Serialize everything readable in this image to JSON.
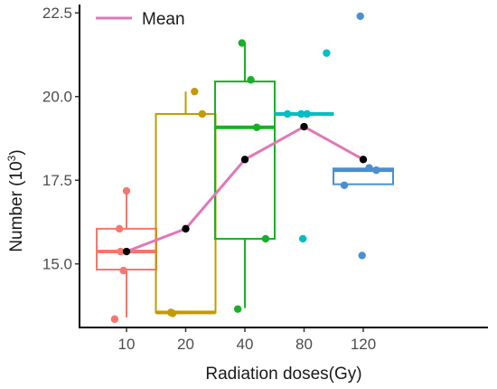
{
  "chart_data": {
    "type": "box",
    "xlabel": "Radiation doses(Gy)",
    "ylabel": "Number (10",
    "ylabel_superscript": "3",
    "ylabel_suffix": ")",
    "ylim": [
      13.1,
      22.75
    ],
    "yticks": [
      15.0,
      17.5,
      20.0,
      22.5
    ],
    "ytick_labels": [
      "15.0",
      "17.5",
      "20.0",
      "22.5"
    ],
    "categories": [
      "10",
      "20",
      "40",
      "80",
      "120"
    ],
    "colors": [
      "#F8766D",
      "#C49A00",
      "#1AAF26",
      "#00BFC4",
      "#4A90D0"
    ],
    "boxes": [
      {
        "q1": 14.83,
        "median": 15.37,
        "q3": 16.05,
        "whisker_low": 13.4,
        "whisker_high": 17.18
      },
      {
        "q1": 13.55,
        "median": 13.55,
        "q3": 19.48,
        "whisker_low": 13.55,
        "whisker_high": 20.15
      },
      {
        "q1": 15.75,
        "median": 19.08,
        "q3": 20.45,
        "whisker_low": 13.68,
        "whisker_high": 21.6
      },
      {
        "q1": 19.48,
        "median": 19.48,
        "q3": 19.48,
        "whisker_low": 19.48,
        "whisker_high": 19.48
      },
      {
        "q1": 17.38,
        "median": 17.8,
        "q3": 17.85,
        "whisker_low": 17.38,
        "whisker_high": 17.85
      }
    ],
    "points": [
      [
        {
          "dx": -0.2,
          "y": 13.35
        },
        {
          "dx": 0.0,
          "y": 17.18
        },
        {
          "dx": -0.12,
          "y": 16.05
        },
        {
          "dx": -0.1,
          "y": 15.37
        },
        {
          "dx": -0.05,
          "y": 14.8
        }
      ],
      [
        {
          "dx": -0.25,
          "y": 13.55
        },
        {
          "dx": -0.22,
          "y": 13.52
        },
        {
          "dx": 0.15,
          "y": 20.15
        },
        {
          "dx": 0.28,
          "y": 19.48
        }
      ],
      [
        {
          "dx": -0.12,
          "y": 13.65
        },
        {
          "dx": -0.05,
          "y": 21.6
        },
        {
          "dx": 0.1,
          "y": 20.5
        },
        {
          "dx": 0.2,
          "y": 19.08
        },
        {
          "dx": 0.35,
          "y": 15.75
        }
      ],
      [
        {
          "dx": -0.28,
          "y": 19.48
        },
        {
          "dx": -0.05,
          "y": 19.48
        },
        {
          "dx": 0.05,
          "y": 19.48
        },
        {
          "dx": 0.38,
          "y": 21.3
        },
        {
          "dx": -0.02,
          "y": 15.75
        }
      ],
      [
        {
          "dx": -0.05,
          "y": 22.4
        },
        {
          "dx": -0.32,
          "y": 17.35
        },
        {
          "dx": 0.1,
          "y": 17.87
        },
        {
          "dx": 0.22,
          "y": 17.8
        },
        {
          "dx": -0.02,
          "y": 15.25
        }
      ]
    ],
    "mean_series": {
      "name": "Mean",
      "color": "#E077B8",
      "values": [
        15.37,
        16.05,
        18.12,
        19.1,
        18.12
      ]
    },
    "legend_position": "top-left",
    "grid": false
  }
}
